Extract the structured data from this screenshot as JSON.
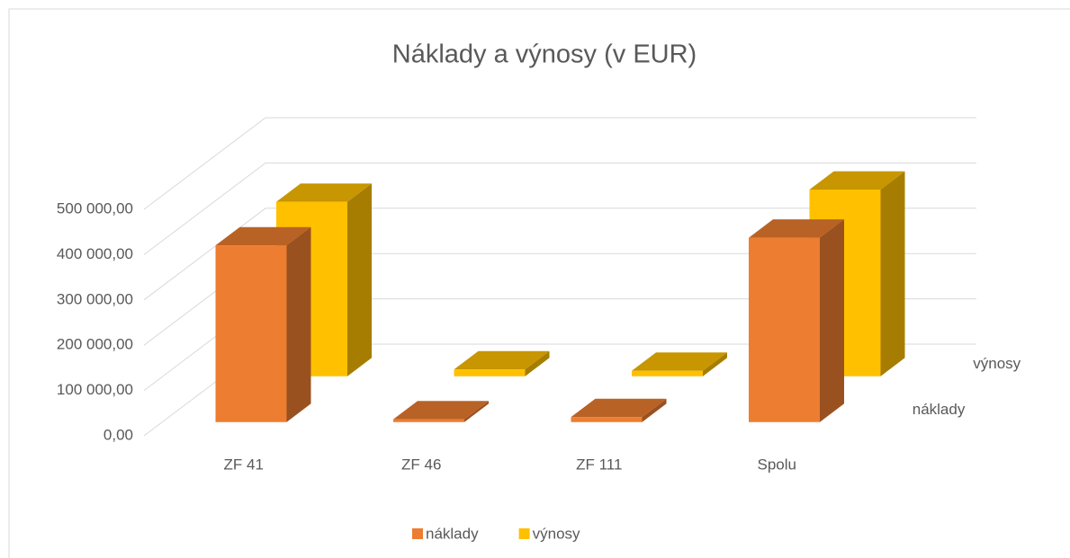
{
  "chart_data": {
    "type": "bar3d",
    "title": "Náklady a výnosy (v EUR)",
    "categories": [
      "ZF 41",
      "ZF 46",
      "ZF 111",
      "Spolu"
    ],
    "series": [
      {
        "name": "náklady",
        "color": "#ED7D31",
        "values": [
          390000,
          6000,
          11000,
          407000
        ]
      },
      {
        "name": "výnosy",
        "color": "#FFC000",
        "values": [
          385000,
          15000,
          12000,
          412000
        ]
      }
    ],
    "ylim": [
      0,
      500000
    ],
    "yticks": [
      {
        "value": 0,
        "label": "0,00"
      },
      {
        "value": 100000,
        "label": "100 000,00"
      },
      {
        "value": 200000,
        "label": "200 000,00"
      },
      {
        "value": 300000,
        "label": "300 000,00"
      },
      {
        "value": 400000,
        "label": "400 000,00"
      },
      {
        "value": 500000,
        "label": "500 000,00"
      }
    ],
    "grid": true,
    "legend": "bottom"
  }
}
